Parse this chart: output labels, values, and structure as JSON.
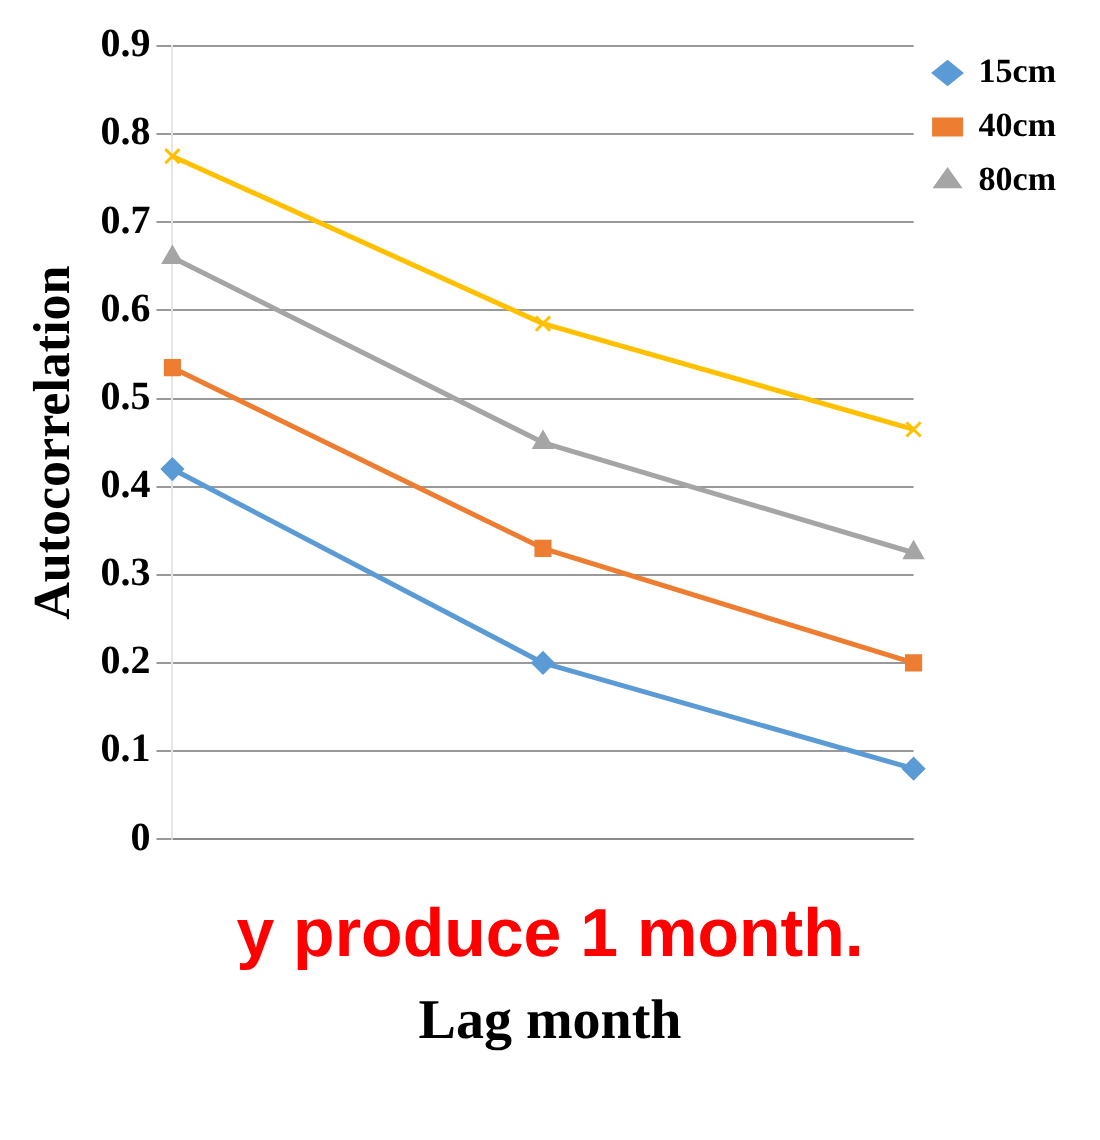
{
  "chart_data": {
    "type": "line",
    "ylabel": "Autocorrelation",
    "xlabel": "Lag month",
    "categories": [
      null,
      null,
      null
    ],
    "series": [
      {
        "name": "15cm",
        "color": "#5b9bd5",
        "marker": "diamond",
        "values": [
          0.42,
          0.2,
          0.08
        ]
      },
      {
        "name": "40cm",
        "color": "#ed7d31",
        "marker": "square",
        "values": [
          0.535,
          0.33,
          0.2
        ]
      },
      {
        "name": "80cm",
        "color": "#a5a5a5",
        "marker": "triangle",
        "values": [
          0.66,
          0.45,
          0.325
        ]
      },
      {
        "color": "#ffc000",
        "marker": "cross",
        "values": [
          0.775,
          0.585,
          0.465
        ]
      }
    ],
    "ylim": [
      0,
      0.9
    ],
    "yticks": [
      0,
      0.1,
      0.2,
      0.3,
      0.4,
      0.5,
      0.6,
      0.7,
      0.8,
      0.9
    ],
    "grid": "y",
    "legend": "top right",
    "annotations": [
      "y produce 1 month."
    ]
  }
}
